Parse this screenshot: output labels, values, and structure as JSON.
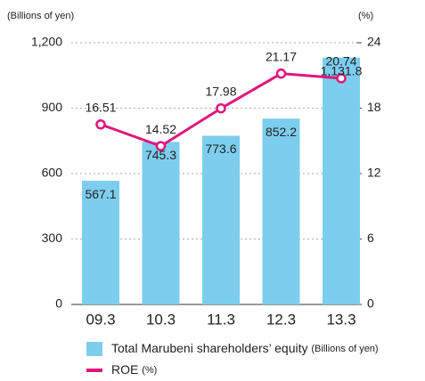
{
  "chart_data": {
    "type": "bar_line",
    "y_label": "(Billions of yen)",
    "y2_label": "(%)",
    "categories": [
      "09.3",
      "10.3",
      "11.3",
      "12.3",
      "13.3"
    ],
    "ylim": [
      0,
      1200
    ],
    "yticks": [
      0,
      300,
      600,
      900,
      {
        "value": 1200,
        "label": "1,200"
      }
    ],
    "y2lim": [
      0,
      24
    ],
    "y2ticks": [
      0,
      6,
      12,
      18,
      24
    ],
    "grid": true,
    "series": [
      {
        "name": "Total Marubeni shareholders’ equity",
        "unit": "(Billions of yen)",
        "type": "bar",
        "color": "#7dcdef",
        "values": [
          567.1,
          745.3,
          773.6,
          852.2,
          1131.8
        ],
        "value_labels": [
          "567.1",
          "745.3",
          "773.6",
          "852.2",
          "1,131.8"
        ]
      },
      {
        "name": "ROE",
        "unit": "(%)",
        "type": "line",
        "axis": "y2",
        "color": "#e0177a",
        "values": [
          16.51,
          14.52,
          17.98,
          21.17,
          20.74
        ]
      }
    ]
  }
}
